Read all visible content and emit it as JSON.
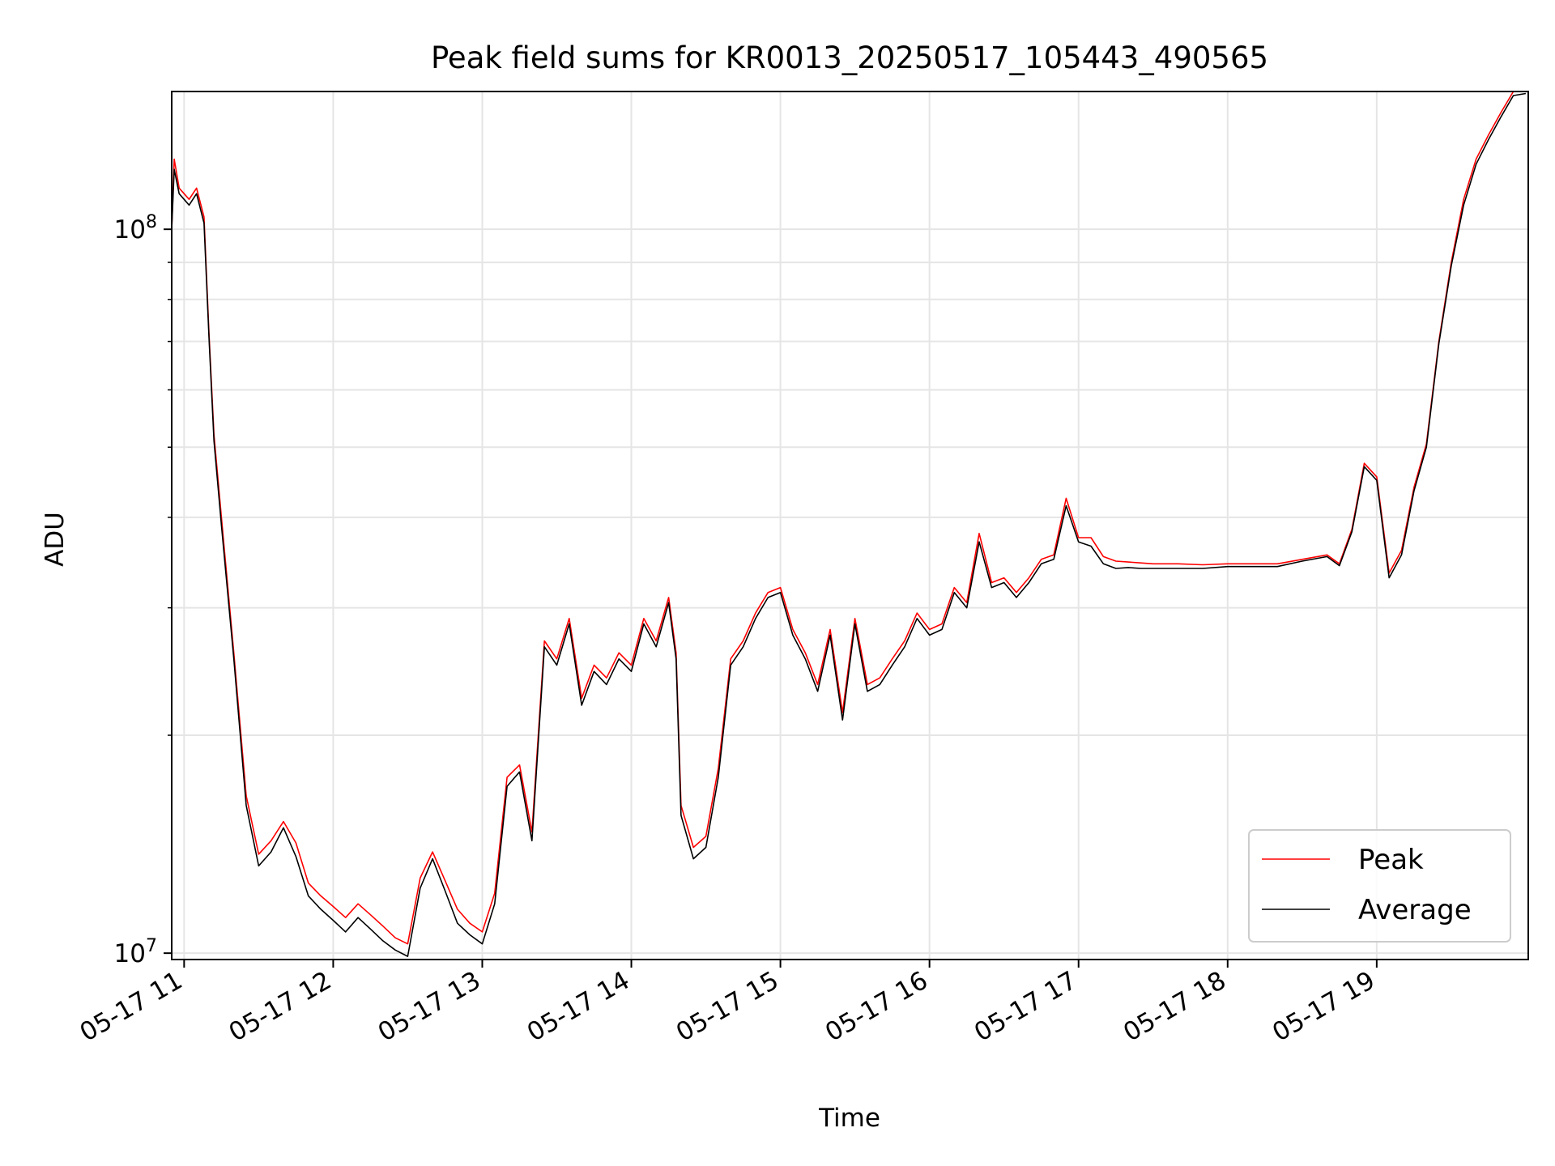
{
  "chart_data": {
    "type": "line",
    "title": "Peak field sums for KR0013_20250517_105443_490565",
    "xlabel": "Time",
    "ylabel": "ADU",
    "yscale": "log",
    "ylim": [
      9800000,
      155000000
    ],
    "xlim": [
      "2025-05-17 10:55",
      "2025-05-17 20:01"
    ],
    "x_ticks": [
      "05-17 11",
      "05-17 12",
      "05-17 13",
      "05-17 14",
      "05-17 15",
      "05-17 16",
      "05-17 17",
      "05-17 18",
      "05-17 19"
    ],
    "y_ticks": [
      {
        "base": "10",
        "exp": "7"
      },
      {
        "base": "10",
        "exp": "8"
      }
    ],
    "grid": true,
    "legend_position": "lower right",
    "x": [
      "10:55",
      "10:56",
      "10:58",
      "11:00",
      "11:02",
      "11:05",
      "11:08",
      "11:10",
      "11:12",
      "11:15",
      "11:20",
      "11:25",
      "11:30",
      "11:35",
      "11:40",
      "11:45",
      "11:50",
      "11:55",
      "12:00",
      "12:05",
      "12:10",
      "12:15",
      "12:20",
      "12:25",
      "12:30",
      "12:35",
      "12:40",
      "12:45",
      "12:50",
      "12:55",
      "13:00",
      "13:05",
      "13:10",
      "13:15",
      "13:20",
      "13:25",
      "13:30",
      "13:35",
      "13:40",
      "13:45",
      "13:50",
      "13:55",
      "14:00",
      "14:05",
      "14:10",
      "14:15",
      "14:18",
      "14:20",
      "14:25",
      "14:30",
      "14:35",
      "14:40",
      "14:45",
      "14:50",
      "14:55",
      "15:00",
      "15:05",
      "15:10",
      "15:15",
      "15:20",
      "15:25",
      "15:30",
      "15:35",
      "15:40",
      "15:45",
      "15:50",
      "15:55",
      "16:00",
      "16:05",
      "16:10",
      "16:15",
      "16:20",
      "16:25",
      "16:30",
      "16:35",
      "16:40",
      "16:45",
      "16:50",
      "16:55",
      "17:00",
      "17:05",
      "17:10",
      "17:15",
      "17:20",
      "17:25",
      "17:30",
      "17:40",
      "17:50",
      "18:00",
      "18:10",
      "18:20",
      "18:30",
      "18:40",
      "18:45",
      "18:50",
      "18:55",
      "19:00",
      "19:05",
      "19:10",
      "19:15",
      "19:20",
      "19:25",
      "19:30",
      "19:35",
      "19:40",
      "19:45",
      "19:50",
      "19:55",
      "20:00"
    ],
    "series": [
      {
        "name": "Peak",
        "color": "#ff0000",
        "values": [
          100000000,
          125000000,
          114000000,
          112000000,
          110000000,
          114000000,
          104000000,
          72000000,
          52000000,
          40000000,
          26000000,
          16500000,
          13700000,
          14300000,
          15200000,
          14200000,
          12500000,
          12000000,
          11600000,
          11200000,
          11700000,
          11300000,
          10900000,
          10500000,
          10300000,
          12700000,
          13800000,
          12600000,
          11500000,
          11000000,
          10700000,
          12100000,
          17500000,
          18200000,
          14700000,
          27000000,
          25500000,
          29000000,
          22500000,
          25000000,
          24000000,
          26000000,
          25000000,
          29000000,
          27000000,
          31000000,
          26000000,
          16000000,
          14000000,
          14500000,
          18000000,
          25500000,
          27000000,
          29500000,
          31500000,
          32000000,
          28000000,
          26000000,
          23500000,
          28000000,
          21500000,
          29000000,
          23500000,
          24000000,
          25500000,
          27000000,
          29500000,
          28000000,
          28500000,
          32000000,
          30500000,
          38000000,
          32500000,
          33000000,
          31500000,
          33000000,
          35000000,
          35500000,
          42500000,
          37500000,
          37500000,
          35300000,
          34800000,
          34700000,
          34600000,
          34500000,
          34500000,
          34400000,
          34500000,
          34500000,
          34500000,
          35000000,
          35500000,
          34500000,
          38500000,
          47500000,
          45500000,
          33500000,
          36000000,
          44000000,
          50500000,
          70000000,
          90000000,
          110000000,
          125000000,
          135000000,
          145000000,
          155000000,
          155000000
        ]
      },
      {
        "name": "Average",
        "color": "#000000",
        "values": [
          100000000,
          121000000,
          112000000,
          110000000,
          108000000,
          112000000,
          102000000,
          71000000,
          51000000,
          39000000,
          25500000,
          16000000,
          13200000,
          13800000,
          14900000,
          13600000,
          12000000,
          11500000,
          11100000,
          10700000,
          11200000,
          10800000,
          10400000,
          10100000,
          9900000,
          12300000,
          13500000,
          12200000,
          11000000,
          10600000,
          10300000,
          11700000,
          17000000,
          17800000,
          14300000,
          26500000,
          25000000,
          28500000,
          22000000,
          24500000,
          23500000,
          25500000,
          24500000,
          28500000,
          26500000,
          30500000,
          25500000,
          15500000,
          13500000,
          14000000,
          17500000,
          25000000,
          26500000,
          29000000,
          31000000,
          31500000,
          27500000,
          25500000,
          23000000,
          27500000,
          21000000,
          28500000,
          23000000,
          23500000,
          25000000,
          26500000,
          29000000,
          27500000,
          28000000,
          31500000,
          30000000,
          37000000,
          32000000,
          32500000,
          31000000,
          32500000,
          34500000,
          35000000,
          41500000,
          37000000,
          36500000,
          34500000,
          34000000,
          34100000,
          34000000,
          34000000,
          34000000,
          34000000,
          34200000,
          34200000,
          34200000,
          34800000,
          35300000,
          34300000,
          38200000,
          47000000,
          45000000,
          33000000,
          35500000,
          43500000,
          50000000,
          69500000,
          89000000,
          108000000,
          123000000,
          133000000,
          143000000,
          153000000,
          154000000
        ]
      }
    ]
  }
}
